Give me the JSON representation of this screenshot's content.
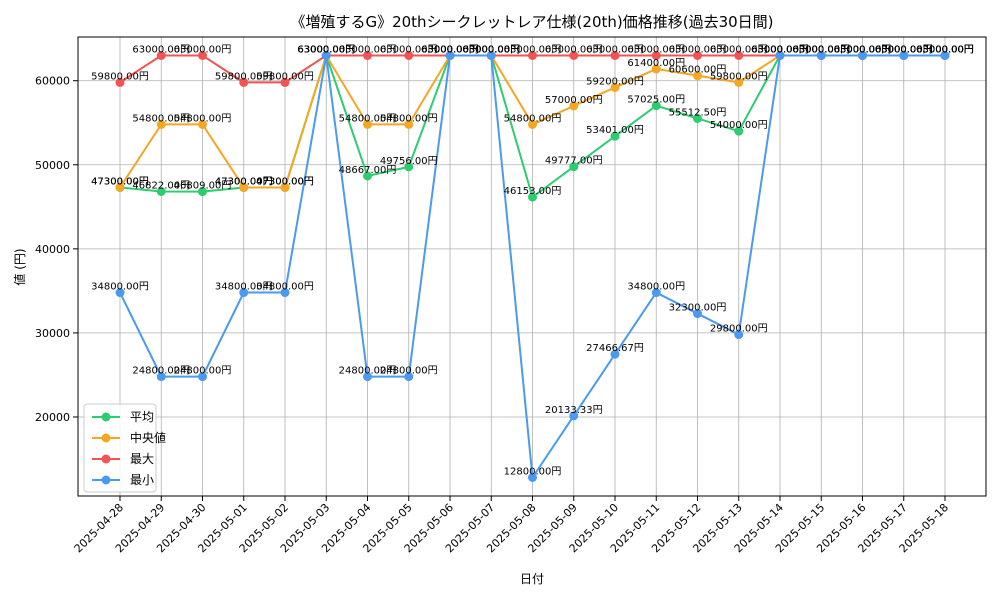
{
  "chart_data": {
    "type": "line",
    "title": "《増殖するG》20thシークレットレア仕様(20th)価格推移(過去30日間)",
    "xlabel": "日付",
    "ylabel": "値 (円)",
    "categories": [
      "2025-04-28",
      "2025-04-29",
      "2025-04-30",
      "2025-05-01",
      "2025-05-02",
      "2025-05-03",
      "2025-05-04",
      "2025-05-05",
      "2025-05-06",
      "2025-05-07",
      "2025-05-08",
      "2025-05-09",
      "2025-05-10",
      "2025-05-11",
      "2025-05-12",
      "2025-05-13",
      "2025-05-14",
      "2025-05-15",
      "2025-05-16",
      "2025-05-17",
      "2025-05-18"
    ],
    "ylim": [
      10600,
      65200
    ],
    "yticks": [
      20000,
      30000,
      40000,
      50000,
      60000
    ],
    "grid": true,
    "legend_position": "lower-left",
    "series": [
      {
        "name": "平均",
        "color": "#2ecc71",
        "values": [
          47300.0,
          46822.0,
          46809.0,
          47300.0,
          47300.0,
          63000.0,
          48667.0,
          49756.0,
          63000.0,
          63000.0,
          46153.0,
          49777.0,
          53401.0,
          57025.0,
          55512.5,
          54000.0,
          63000.0,
          63000.0,
          63000.0,
          63000.0,
          63000.0
        ],
        "labels": [
          "47300.00円",
          "46822.00円",
          "46809.00円",
          "47300.00円",
          "47300.00円",
          "63000.00円",
          "48667.00円",
          "49756.00円",
          "63000.00円",
          "63000.00円",
          "46153.00円",
          "49777.00円",
          "53401.00円",
          "57025.00円",
          "55512.50円",
          "54000.00円",
          "63000.00円",
          "63000.00円",
          "63000.00円",
          "63000.00円",
          "63000.00円"
        ]
      },
      {
        "name": "中央値",
        "color": "#f5a623",
        "values": [
          47300.0,
          54800.0,
          54800.0,
          47300.0,
          47300.0,
          63000.0,
          54800.0,
          54800.0,
          63000.0,
          63000.0,
          54800.0,
          57000.0,
          59200.0,
          61400.0,
          60600.0,
          59800.0,
          63000.0,
          63000.0,
          63000.0,
          63000.0,
          63000.0
        ],
        "labels": [
          "47300.00円",
          "54800.00円",
          "54800.00円",
          "47300.00円",
          "47300.00円",
          "63000.00円",
          "54800.00円",
          "54800.00円",
          "63000.00円",
          "63000.00円",
          "54800.00円",
          "57000.00円",
          "59200.00円",
          "61400.00円",
          "60600.00円",
          "59800.00円",
          "63000.00円",
          "63000.00円",
          "63000.00円",
          "63000.00円",
          "63000.00円"
        ]
      },
      {
        "name": "最大",
        "color": "#f25454",
        "values": [
          59800.0,
          63000.0,
          63000.0,
          59800.0,
          59800.0,
          63000.0,
          63000.0,
          63000.0,
          63000.0,
          63000.0,
          63000.0,
          63000.0,
          63000.0,
          63000.0,
          63000.0,
          63000.0,
          63000.0,
          63000.0,
          63000.0,
          63000.0,
          63000.0
        ],
        "labels": [
          "59800.00円",
          "63000.00円",
          "63000.00円",
          "59800.00円",
          "59800.00円",
          "63000.00円",
          "63000.00円",
          "63000.00円",
          "63000.00円",
          "63000.00円",
          "63000.00円",
          "63000.00円",
          "63000.00円",
          "63000.00円",
          "63000.00円",
          "63000.00円",
          "63000.00円",
          "63000.00円",
          "63000.00円",
          "63000.00円",
          "63000.00円"
        ]
      },
      {
        "name": "最小",
        "color": "#4a9af0",
        "values": [
          34800.0,
          24800.0,
          24800.0,
          34800.0,
          34800.0,
          63000.0,
          24800.0,
          24800.0,
          63000.0,
          63000.0,
          12800.0,
          20133.33,
          27466.67,
          34800.0,
          32300.0,
          29800.0,
          63000.0,
          63000.0,
          63000.0,
          63000.0,
          63000.0
        ],
        "labels": [
          "34800.00円",
          "24800.00円",
          "24800.00円",
          "34800.00円",
          "34800.00円",
          "63000.00円",
          "24800.00円",
          "24800.00円",
          "63000.00円",
          "63000.00円",
          "12800.00円",
          "20133.33円",
          "27466.67円",
          "34800.00円",
          "32300.00円",
          "29800.00円",
          "63000.00円",
          "63000.00円",
          "63000.00円",
          "63000.00円",
          "63000.00円"
        ]
      }
    ]
  }
}
